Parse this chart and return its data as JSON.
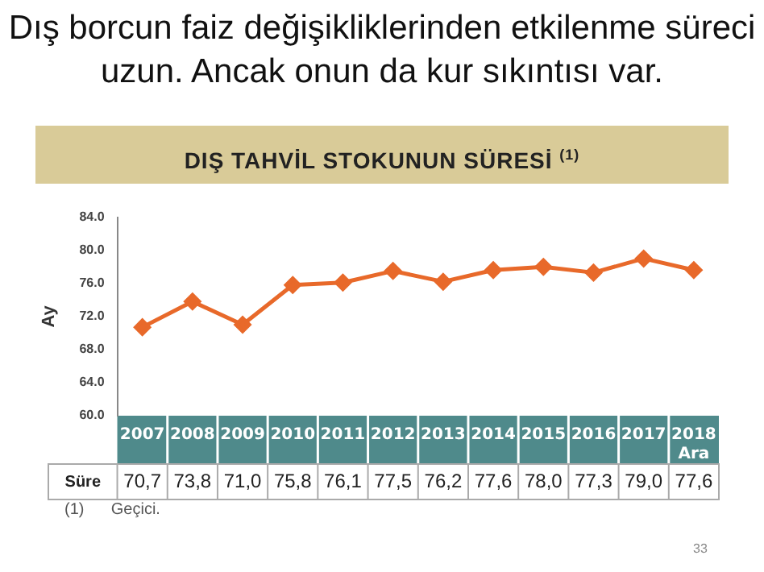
{
  "chart_data": {
    "type": "line",
    "title": "Dış borcun faiz değişikliklerinden etkilenme süreci uzun. Ancak onun da kur sıkıntısı var.",
    "subtitle": "DIŞ TAHVİL STOKUNUN SÜRESİ $^{(1)}$",
    "ylabel": "Ay",
    "categories": [
      "2007",
      "2008",
      "2009",
      "2010",
      "2011",
      "2012",
      "2013",
      "2014",
      "2015",
      "2016",
      "2017",
      "2018 Ara"
    ],
    "series": [
      {
        "name": "Süre",
        "color": "#e8692a",
        "values": [
          70.7,
          73.8,
          71.0,
          75.8,
          76.1,
          77.5,
          76.2,
          77.6,
          78.0,
          77.3,
          79.0,
          77.6
        ],
        "value_labels": [
          "70,7",
          "73,8",
          "71,0",
          "75,8",
          "76,1",
          "77,5",
          "76,2",
          "77,6",
          "78,0",
          "77,3",
          "79,0",
          "77,6"
        ]
      }
    ],
    "ylim": [
      60,
      84
    ],
    "yticks": [
      {
        "value": 60,
        "label": "60.0"
      },
      {
        "value": 64,
        "label": "64.0"
      },
      {
        "value": 68,
        "label": "68.0"
      },
      {
        "value": 72,
        "label": "72.0"
      },
      {
        "value": 76,
        "label": "76.0"
      },
      {
        "value": 80,
        "label": "80.0"
      },
      {
        "value": 84,
        "label": "84.0"
      }
    ],
    "grid": false,
    "legend": false,
    "marker": "diamond",
    "line_style": "solid",
    "annotations": [
      "(1)      Geçici.",
      "33"
    ]
  }
}
